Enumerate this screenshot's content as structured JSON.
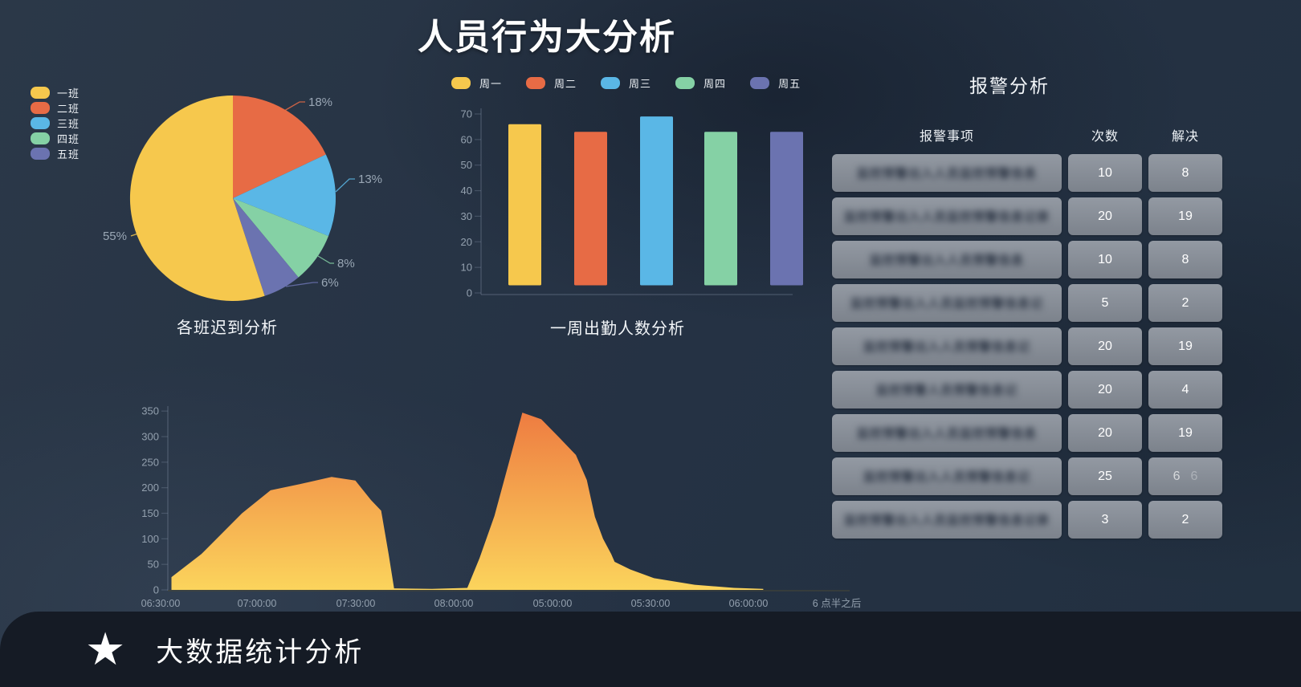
{
  "title": "人员行为大分析",
  "chart_data": [
    {
      "type": "pie",
      "title": "各班迟到分析",
      "legend": [
        {
          "label": "一班",
          "color": "#f6c84d"
        },
        {
          "label": "二班",
          "color": "#e76b45"
        },
        {
          "label": "三班",
          "color": "#5ab7e6"
        },
        {
          "label": "四班",
          "color": "#85d1a5"
        },
        {
          "label": "五班",
          "color": "#6b73b0"
        }
      ],
      "slices": [
        {
          "label": "二班",
          "value": 18,
          "pct": "18%",
          "color": "#e76b45"
        },
        {
          "label": "三班",
          "value": 13,
          "pct": "13%",
          "color": "#5ab7e6"
        },
        {
          "label": "四班",
          "value": 8,
          "pct": "8%",
          "color": "#85d1a5"
        },
        {
          "label": "五班",
          "value": 6,
          "pct": "6%",
          "color": "#6b73b0"
        },
        {
          "label": "一班",
          "value": 55,
          "pct": "55%",
          "color": "#f6c84d"
        }
      ],
      "start_angle": "top",
      "direction": "clockwise"
    },
    {
      "type": "bar",
      "title": "一周出勤人数分析",
      "categories": [
        "周一",
        "周二",
        "周三",
        "周四",
        "周五"
      ],
      "values": [
        66,
        63,
        69,
        63,
        63
      ],
      "colors": [
        "#f6c84d",
        "#e76b45",
        "#5ab7e6",
        "#85d1a5",
        "#6b73b0"
      ],
      "ylim": [
        0,
        70
      ],
      "yticks": [
        0,
        10,
        20,
        30,
        40,
        50,
        60,
        70
      ],
      "legend_position": "top",
      "bar_bottom_offset": 3
    },
    {
      "type": "area",
      "title": "",
      "x_tick_labels": [
        "06:30:00",
        "07:00:00",
        "07:30:00",
        "08:00:00",
        "05:00:00",
        "05:30:00",
        "06:00:00",
        "6 点半之后"
      ],
      "ylim": [
        0,
        350
      ],
      "yticks": [
        0,
        50,
        100,
        150,
        200,
        250,
        300,
        350
      ],
      "gradient_top": "#ee7c41",
      "gradient_bottom": "#fbd45c",
      "points": [
        [
          0.016,
          25
        ],
        [
          0.06,
          70
        ],
        [
          0.12,
          150
        ],
        [
          0.162,
          195
        ],
        [
          0.205,
          207
        ],
        [
          0.252,
          221
        ],
        [
          0.287,
          214
        ],
        [
          0.31,
          176
        ],
        [
          0.325,
          155
        ],
        [
          0.336,
          70
        ],
        [
          0.344,
          3
        ],
        [
          0.4,
          2
        ],
        [
          0.452,
          4
        ],
        [
          0.47,
          62
        ],
        [
          0.492,
          145
        ],
        [
          0.513,
          248
        ],
        [
          0.533,
          347
        ],
        [
          0.561,
          334
        ],
        [
          0.586,
          300
        ],
        [
          0.612,
          264
        ],
        [
          0.628,
          215
        ],
        [
          0.64,
          143
        ],
        [
          0.652,
          100
        ],
        [
          0.664,
          70
        ],
        [
          0.669,
          55
        ],
        [
          0.692,
          40
        ],
        [
          0.727,
          23
        ],
        [
          0.787,
          10
        ],
        [
          0.845,
          4
        ],
        [
          0.888,
          2
        ]
      ]
    }
  ],
  "alarm": {
    "title": "报警分析",
    "columns": [
      "报警事项",
      "次数",
      "解决"
    ],
    "rows": [
      {
        "item_obscured": "监控预警出入人员监控预警信息",
        "times": "10",
        "solve": "8"
      },
      {
        "item_obscured": "监控预警出入人员监控预警信息记录",
        "times": "20",
        "solve": "19"
      },
      {
        "item_obscured": "监控预警出入人员预警信息",
        "times": "10",
        "solve": "8"
      },
      {
        "item_obscured": "监控预警出入人员监控预警信息记",
        "times": "5",
        "solve": "2"
      },
      {
        "item_obscured": "监控预警出入人员预警信息记",
        "times": "20",
        "solve": "19"
      },
      {
        "item_obscured": "监控预警人员预警信息记",
        "times": "20",
        "solve": "4"
      },
      {
        "item_obscured": "监控预警出入人员监控预警信息",
        "times": "20",
        "solve": "19"
      },
      {
        "item_obscured": "监控预警出入人员预警信息记",
        "times": "25",
        "solve": "6",
        "solve_ghost": "6"
      },
      {
        "item_obscured": "监控预警出入人员监控预警信息记录",
        "times": "3",
        "solve": "2"
      }
    ]
  },
  "footer": {
    "star_icon": "★",
    "label": "大数据统计分析"
  },
  "colors": {
    "background": "#253244",
    "footer": "#151b25",
    "axis_text": "#93a0ae",
    "pie_label_text": "#9aa7b5",
    "cell_gray": "#8b929c"
  }
}
